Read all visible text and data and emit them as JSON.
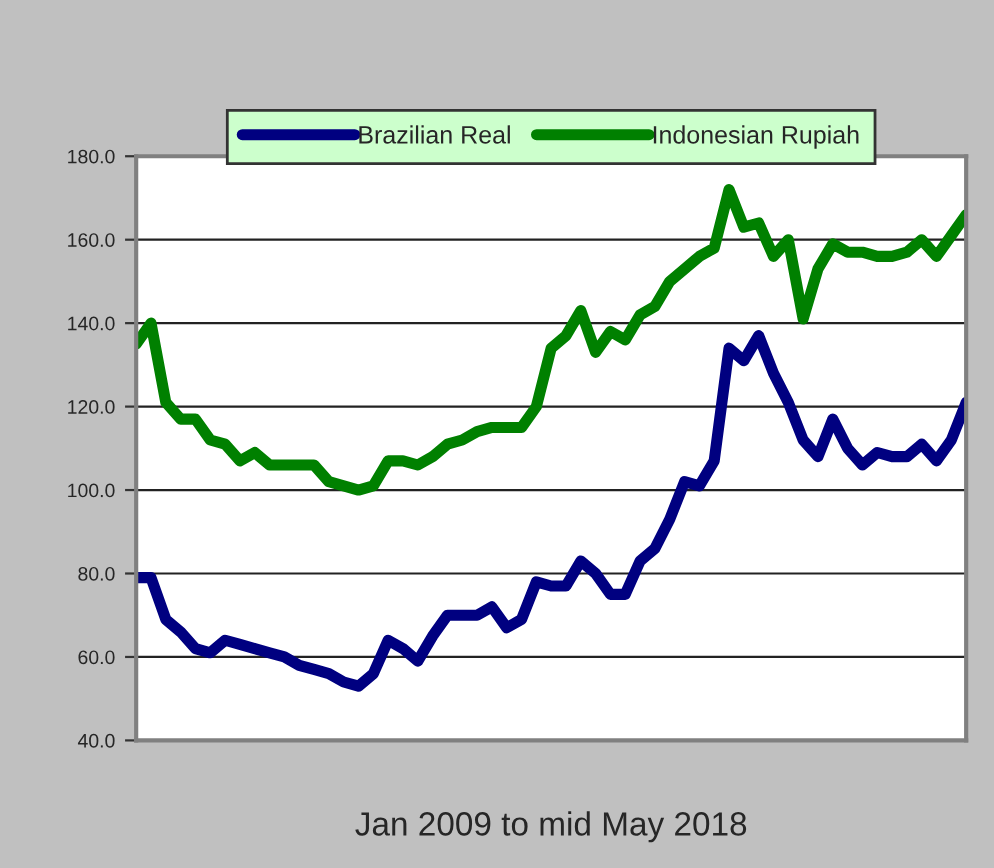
{
  "chart_data": {
    "type": "line",
    "xlabel": "Jan 2009 to mid May 2018",
    "categories": [
      null,
      null,
      null,
      null,
      null,
      null,
      null,
      null,
      null,
      null,
      null,
      null,
      null,
      null,
      null,
      null,
      null,
      null,
      null,
      null,
      null,
      null,
      null,
      null,
      null,
      null,
      null,
      null,
      null,
      null,
      null,
      null,
      null,
      null,
      null,
      null,
      null,
      null,
      null,
      null,
      null,
      null,
      null,
      null,
      null,
      null,
      null,
      null,
      null,
      null,
      null,
      null,
      null,
      null,
      null,
      null,
      null
    ],
    "series": [
      {
        "name": "Brazilian Real",
        "color": "#000080",
        "values": [
          79,
          79,
          69,
          66,
          62,
          61,
          64,
          63,
          62,
          61,
          60,
          58,
          57,
          56,
          54,
          53,
          56,
          64,
          62,
          59,
          65,
          70,
          70,
          70,
          72,
          67,
          69,
          78,
          77,
          77,
          83,
          80,
          75,
          75,
          83,
          86,
          93,
          102,
          101,
          107,
          134,
          131,
          137,
          128,
          121,
          112,
          108,
          117,
          110,
          106,
          109,
          108,
          108,
          111,
          107,
          112,
          121
        ]
      },
      {
        "name": "Indonesian Rupiah",
        "color": "#008000",
        "values": [
          135,
          140,
          121,
          117,
          117,
          112,
          111,
          107,
          109,
          106,
          106,
          106,
          106,
          102,
          101,
          100,
          101,
          107,
          107,
          106,
          108,
          111,
          112,
          114,
          115,
          115,
          115,
          120,
          134,
          137,
          143,
          133,
          138,
          136,
          142,
          144,
          150,
          153,
          156,
          158,
          172,
          163,
          164,
          156,
          160,
          141,
          153,
          159,
          157,
          157,
          156,
          156,
          157,
          160,
          156,
          161,
          166
        ]
      }
    ],
    "ylim": [
      40,
      180
    ],
    "yticks": [
      {
        "value": 40,
        "label": "40.0"
      },
      {
        "value": 60,
        "label": "60.0"
      },
      {
        "value": 80,
        "label": "80.0"
      },
      {
        "value": 100,
        "label": "100.0"
      },
      {
        "value": 120,
        "label": "120.0"
      },
      {
        "value": 140,
        "label": "140.0"
      },
      {
        "value": 160,
        "label": "160.0"
      },
      {
        "value": 180,
        "label": "180.0"
      }
    ],
    "tick_labels": "y",
    "grid": "y",
    "legend": "top",
    "line_style": "solid",
    "marker": "none"
  }
}
